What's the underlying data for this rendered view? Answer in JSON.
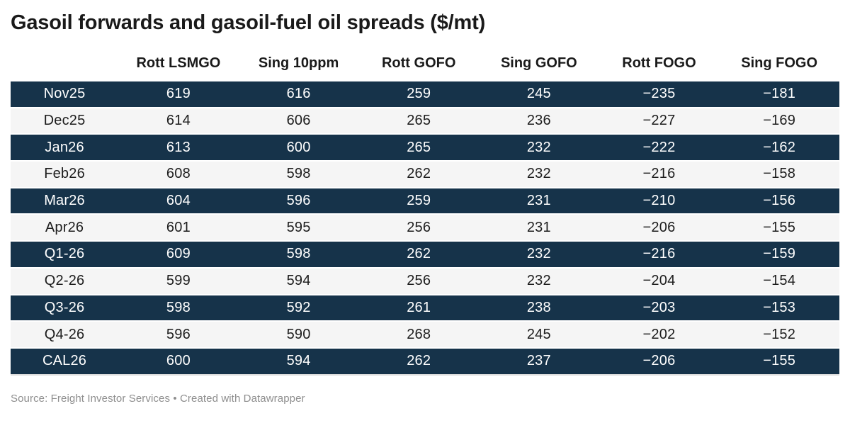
{
  "title": "Gasoil forwards and gasoil-fuel oil spreads ($/mt)",
  "footer": {
    "source": "Source: Freight Investor Services",
    "separator": "•",
    "attribution": "Created with Datawrapper"
  },
  "colors": {
    "dark_row_bg": "#16334a",
    "light_row_bg": "#f5f5f5",
    "dark_row_text": "#ffffff",
    "light_row_text": "#1d1d1d",
    "footer_text": "#8e8e8e"
  },
  "chart_data": {
    "type": "table",
    "title": "Gasoil forwards and gasoil-fuel oil spreads ($/mt)",
    "columns": [
      "",
      "Rott LSMGO",
      "Sing 10ppm",
      "Rott GOFO",
      "Sing GOFO",
      "Rott FOGO",
      "Sing FOGO"
    ],
    "rows": [
      {
        "label": "Nov25",
        "values": [
          "619",
          "616",
          "259",
          "245",
          "−235",
          "−181"
        ]
      },
      {
        "label": "Dec25",
        "values": [
          "614",
          "606",
          "265",
          "236",
          "−227",
          "−169"
        ]
      },
      {
        "label": "Jan26",
        "values": [
          "613",
          "600",
          "265",
          "232",
          "−222",
          "−162"
        ]
      },
      {
        "label": "Feb26",
        "values": [
          "608",
          "598",
          "262",
          "232",
          "−216",
          "−158"
        ]
      },
      {
        "label": "Mar26",
        "values": [
          "604",
          "596",
          "259",
          "231",
          "−210",
          "−156"
        ]
      },
      {
        "label": "Apr26",
        "values": [
          "601",
          "595",
          "256",
          "231",
          "−206",
          "−155"
        ]
      },
      {
        "label": "Q1-26",
        "values": [
          "609",
          "598",
          "262",
          "232",
          "−216",
          "−159"
        ]
      },
      {
        "label": "Q2-26",
        "values": [
          "599",
          "594",
          "256",
          "232",
          "−204",
          "−154"
        ]
      },
      {
        "label": "Q3-26",
        "values": [
          "598",
          "592",
          "261",
          "238",
          "−203",
          "−153"
        ]
      },
      {
        "label": "Q4-26",
        "values": [
          "596",
          "590",
          "268",
          "245",
          "−202",
          "−152"
        ]
      },
      {
        "label": "CAL26",
        "values": [
          "600",
          "594",
          "262",
          "237",
          "−206",
          "−155"
        ]
      }
    ],
    "layout": {
      "striping": "alternating rows starting dark",
      "first_column_header": "",
      "value_alignment": "center"
    }
  }
}
